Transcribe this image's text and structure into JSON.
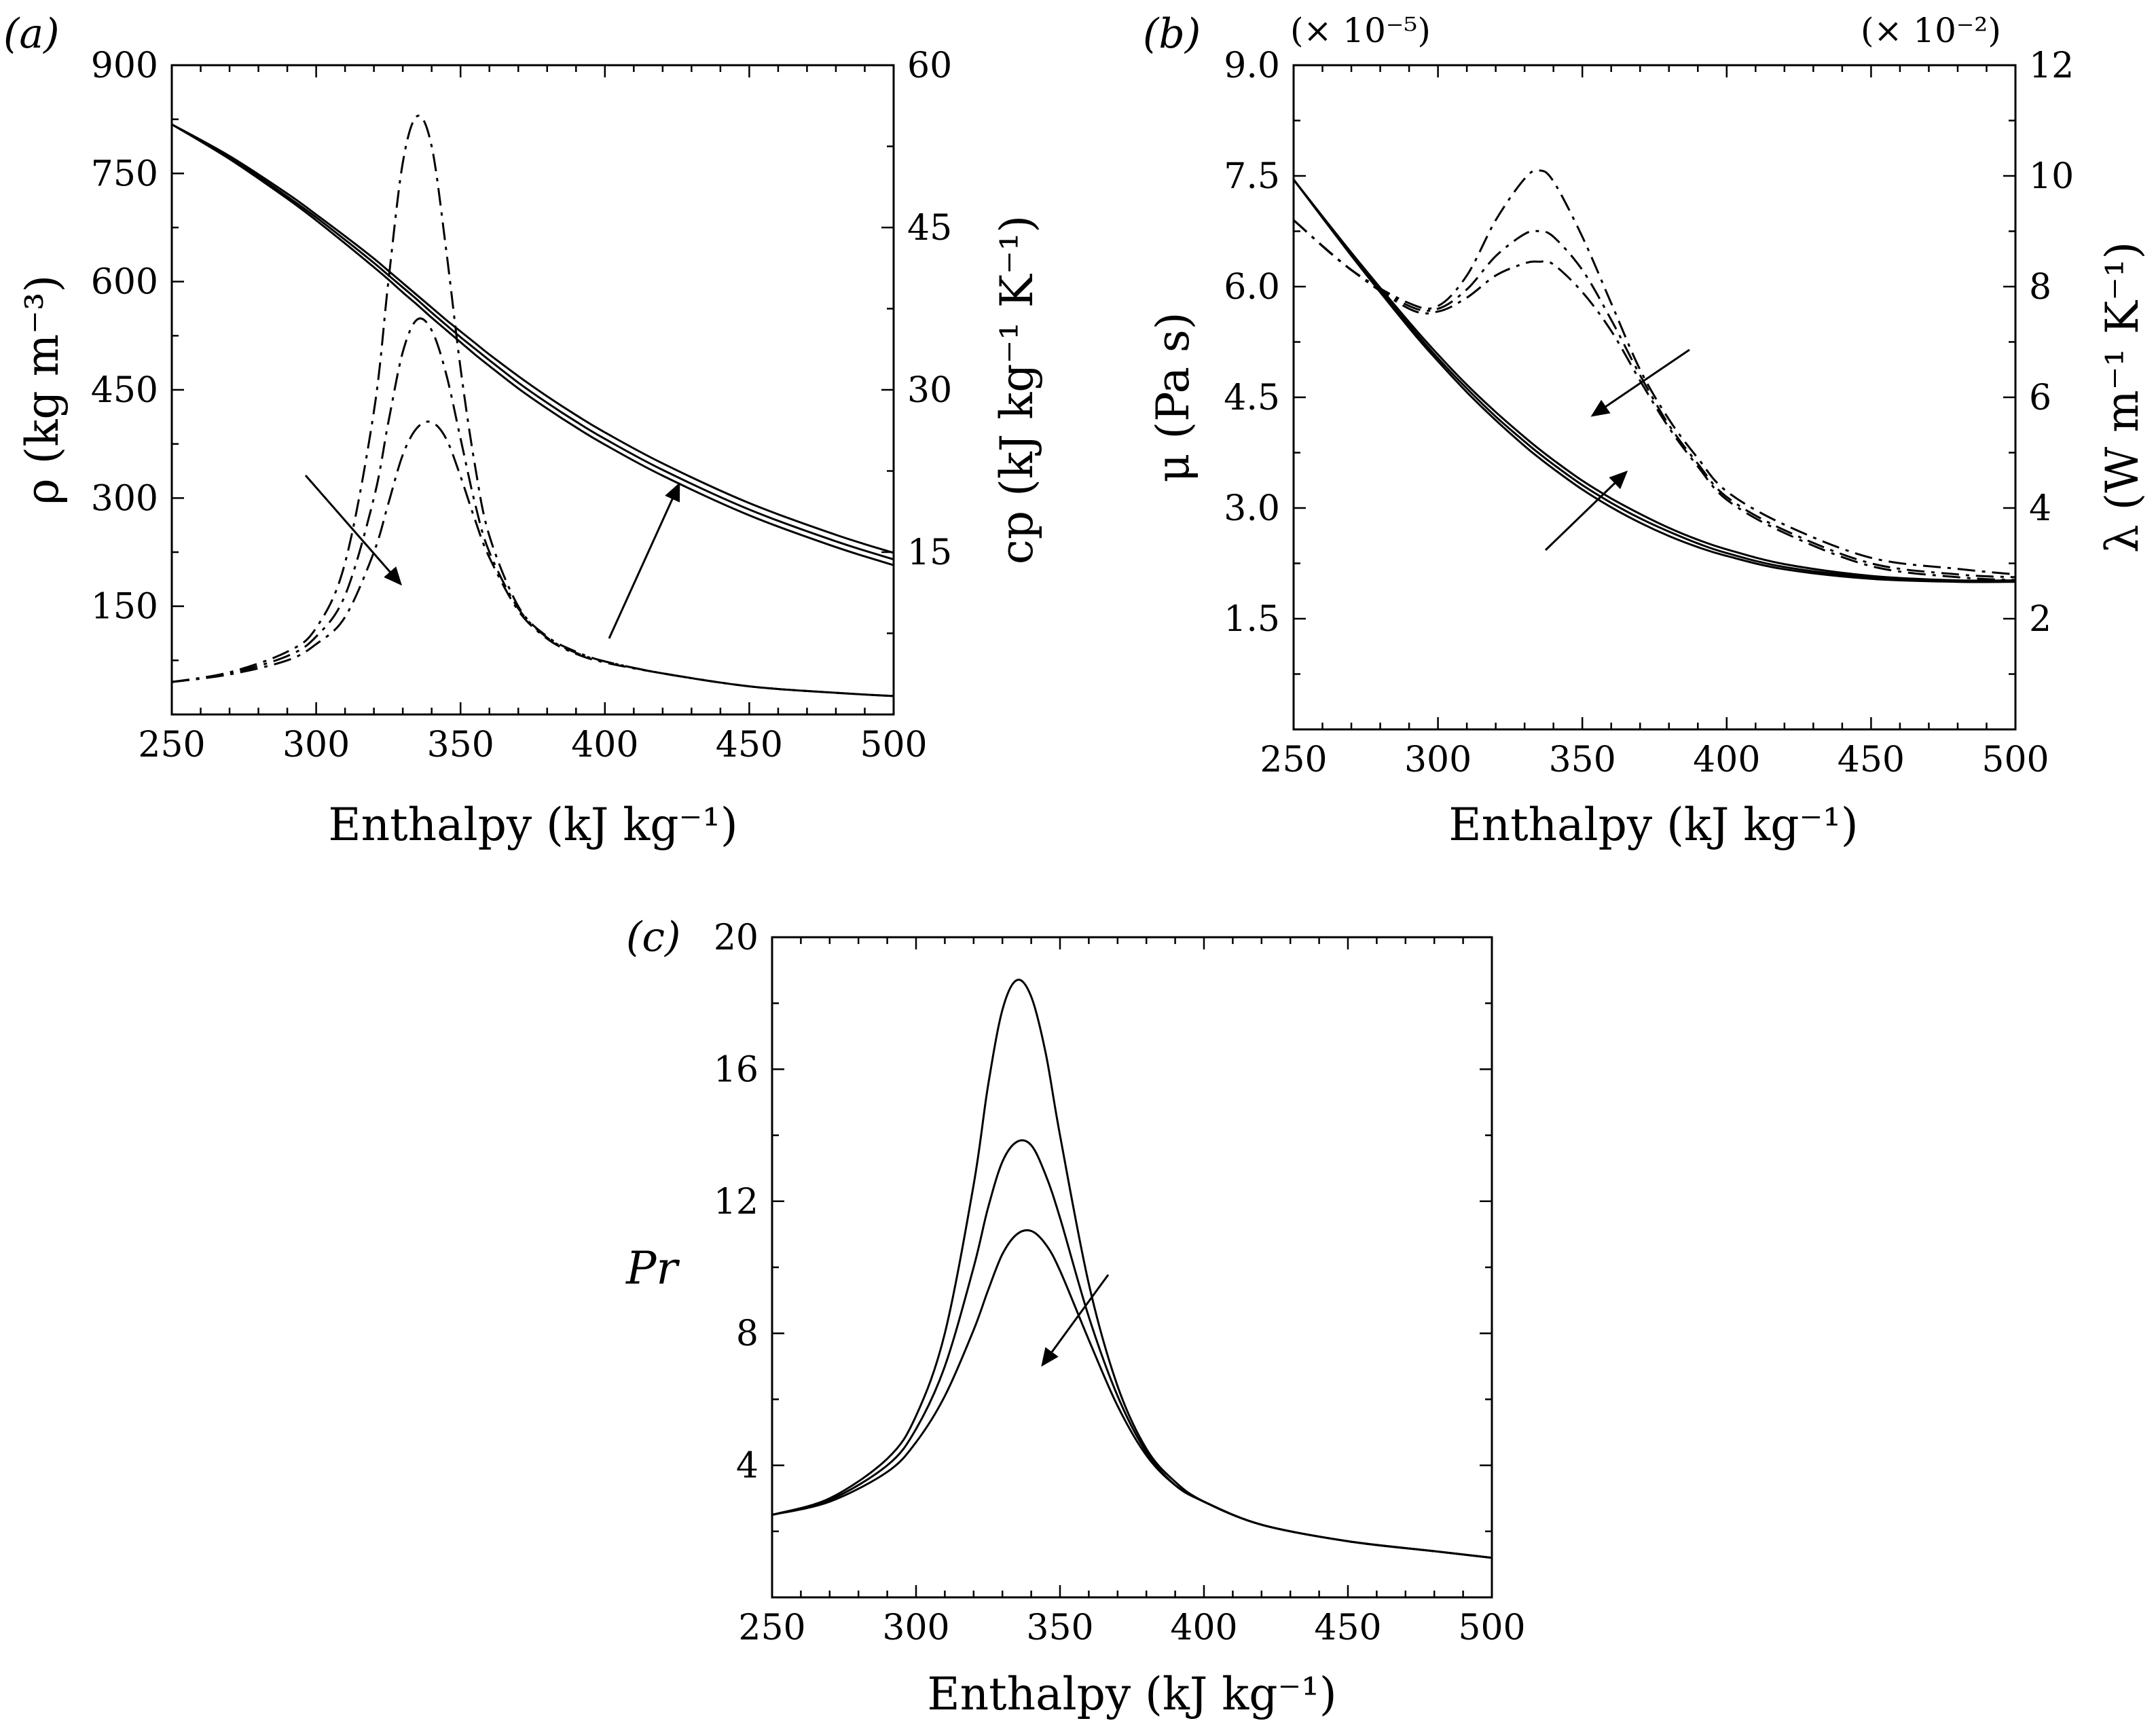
{
  "chart_data": [
    {
      "id": "a",
      "type": "line",
      "panel_label": "(a)",
      "xlabel": "Enthalpy (kJ kg⁻¹)",
      "xlim": [
        250,
        500
      ],
      "xticks": [
        250,
        300,
        350,
        400,
        450,
        500
      ],
      "ylabel_left": "ρ (kg m⁻³)",
      "ylim_left": [
        0,
        900
      ],
      "yticks_left": [
        150,
        300,
        450,
        600,
        750,
        900
      ],
      "ylabel_right": "cp (kJ kg⁻¹ K⁻¹)",
      "ylim_right": [
        0,
        60
      ],
      "yticks_right": [
        15,
        30,
        45,
        60
      ],
      "x": [
        250,
        270,
        290,
        300,
        310,
        320,
        325,
        330,
        335,
        340,
        345,
        350,
        355,
        360,
        370,
        380,
        390,
        400,
        420,
        450,
        480,
        500
      ],
      "series": [
        {
          "name": "ρ (1)",
          "axis": "left",
          "style": "solid",
          "values": [
            818,
            770,
            715,
            685,
            653,
            620,
            603,
            585,
            568,
            550,
            533,
            516,
            499,
            483,
            452,
            424,
            398,
            374,
            331,
            276,
            232,
            207
          ]
        },
        {
          "name": "ρ (2)",
          "axis": "left",
          "style": "solid",
          "values": [
            818,
            772,
            718,
            689,
            658,
            626,
            609,
            592,
            575,
            557,
            540,
            523,
            507,
            491,
            460,
            432,
            406,
            382,
            339,
            284,
            240,
            215
          ]
        },
        {
          "name": "ρ (3)",
          "axis": "left",
          "style": "solid",
          "values": [
            818,
            774,
            722,
            693,
            663,
            632,
            615,
            598,
            581,
            564,
            547,
            531,
            515,
            499,
            469,
            441,
            415,
            391,
            348,
            293,
            249,
            224
          ]
        },
        {
          "name": "cp (1)",
          "axis": "right",
          "style": "dashdot",
          "values": [
            3.0,
            3.9,
            5.8,
            8.0,
            14.0,
            28.0,
            40.0,
            51.0,
            55.3,
            52.5,
            43.0,
            32.0,
            23.0,
            16.5,
            10.0,
            7.2,
            5.8,
            4.9,
            3.8,
            2.6,
            2.0,
            1.7
          ]
        },
        {
          "name": "cp (2)",
          "axis": "right",
          "style": "dashdot",
          "values": [
            3.0,
            3.8,
            5.4,
            7.2,
            11.0,
            20.0,
            27.0,
            33.5,
            36.5,
            35.5,
            31.5,
            25.5,
            19.5,
            15.0,
            9.8,
            7.1,
            5.7,
            4.9,
            3.8,
            2.6,
            2.0,
            1.7
          ]
        },
        {
          "name": "cp (3)",
          "axis": "right",
          "style": "dashdot",
          "values": [
            3.0,
            3.7,
            5.0,
            6.5,
            9.0,
            15.0,
            19.5,
            24.0,
            26.5,
            27.0,
            25.5,
            22.0,
            18.0,
            14.5,
            9.6,
            7.0,
            5.6,
            4.8,
            3.8,
            2.6,
            2.0,
            1.7
          ]
        }
      ],
      "annotations": [
        {
          "type": "arrow",
          "direction": "down-right",
          "note": "cp peak decreases"
        },
        {
          "type": "arrow",
          "direction": "up-right",
          "note": "ρ increases"
        }
      ]
    },
    {
      "id": "b",
      "type": "line",
      "panel_label": "(b)",
      "xlabel": "Enthalpy (kJ kg⁻¹)",
      "xlim": [
        250,
        500
      ],
      "xticks": [
        250,
        300,
        350,
        400,
        450,
        500
      ],
      "ylabel_left": "μ (Pa s)",
      "ylim_left": [
        0,
        9.0
      ],
      "yticks_left": [
        1.5,
        3.0,
        4.5,
        6.0,
        7.5,
        9.0
      ],
      "left_multiplier": "(× 10⁻⁵)",
      "ylabel_right": "λ (W m⁻¹ K⁻¹)",
      "ylim_right": [
        0,
        12
      ],
      "yticks_right": [
        2,
        4,
        6,
        8,
        10,
        12
      ],
      "right_multiplier": "(× 10⁻²)",
      "x": [
        250,
        270,
        290,
        300,
        310,
        320,
        330,
        335,
        340,
        350,
        360,
        370,
        380,
        390,
        400,
        420,
        450,
        480,
        500
      ],
      "series": [
        {
          "name": "μ (1)",
          "axis": "left",
          "style": "solid",
          "values": [
            7.45,
            6.42,
            5.44,
            4.99,
            4.57,
            4.19,
            3.84,
            3.68,
            3.53,
            3.25,
            3.01,
            2.8,
            2.62,
            2.47,
            2.35,
            2.17,
            2.04,
            2.0,
            2.0
          ]
        },
        {
          "name": "μ (2)",
          "axis": "left",
          "style": "solid",
          "values": [
            7.45,
            6.44,
            5.48,
            5.03,
            4.62,
            4.24,
            3.9,
            3.74,
            3.59,
            3.31,
            3.07,
            2.86,
            2.68,
            2.52,
            2.39,
            2.2,
            2.06,
            2.01,
            2.01
          ]
        },
        {
          "name": "μ (3)",
          "axis": "left",
          "style": "solid",
          "values": [
            7.45,
            6.46,
            5.52,
            5.08,
            4.67,
            4.3,
            3.96,
            3.8,
            3.65,
            3.37,
            3.13,
            2.92,
            2.73,
            2.57,
            2.44,
            2.24,
            2.08,
            2.02,
            2.02
          ]
        },
        {
          "name": "λ (1)",
          "axis": "right",
          "style": "dashdot",
          "values": [
            9.2,
            8.3,
            7.7,
            7.65,
            8.2,
            9.2,
            9.95,
            10.1,
            9.9,
            8.9,
            7.7,
            6.5,
            5.6,
            4.9,
            4.3,
            3.7,
            3.1,
            2.9,
            2.8
          ]
        },
        {
          "name": "λ (2)",
          "axis": "right",
          "style": "dashdot",
          "values": [
            9.2,
            8.3,
            7.65,
            7.6,
            7.95,
            8.55,
            8.95,
            9.0,
            8.9,
            8.3,
            7.4,
            6.4,
            5.5,
            4.8,
            4.2,
            3.6,
            3.0,
            2.8,
            2.75
          ]
        },
        {
          "name": "λ (3)",
          "axis": "right",
          "style": "dashdot",
          "values": [
            9.2,
            8.3,
            7.6,
            7.55,
            7.8,
            8.2,
            8.42,
            8.45,
            8.4,
            7.9,
            7.2,
            6.3,
            5.45,
            4.75,
            4.15,
            3.55,
            2.95,
            2.75,
            2.7
          ]
        }
      ],
      "annotations": [
        {
          "type": "arrow",
          "direction": "down-left",
          "note": "λ peak decreases"
        },
        {
          "type": "arrow",
          "direction": "up-right",
          "note": "μ increases"
        }
      ]
    },
    {
      "id": "c",
      "type": "line",
      "panel_label": "(c)",
      "xlabel": "Enthalpy (kJ kg⁻¹)",
      "xlim": [
        250,
        500
      ],
      "xticks": [
        250,
        300,
        350,
        400,
        450,
        500
      ],
      "ylabel_left": "Pr",
      "ylim_left": [
        0,
        20
      ],
      "yticks_left": [
        4,
        8,
        12,
        16,
        20
      ],
      "x": [
        250,
        270,
        290,
        300,
        310,
        320,
        325,
        330,
        335,
        340,
        345,
        350,
        360,
        370,
        380,
        390,
        400,
        420,
        450,
        480,
        500
      ],
      "series": [
        {
          "name": "Pr (1)",
          "axis": "left",
          "style": "solid",
          "values": [
            2.5,
            3.0,
            4.2,
            5.5,
            8.0,
            12.5,
            15.5,
            17.8,
            18.7,
            18.2,
            16.5,
            14.0,
            9.5,
            6.4,
            4.5,
            3.5,
            2.9,
            2.2,
            1.7,
            1.4,
            1.2
          ]
        },
        {
          "name": "Pr (2)",
          "axis": "left",
          "style": "solid",
          "values": [
            2.5,
            2.95,
            4.0,
            5.1,
            7.0,
            10.0,
            11.8,
            13.2,
            13.8,
            13.7,
            12.8,
            11.5,
            8.5,
            6.1,
            4.4,
            3.4,
            2.9,
            2.2,
            1.7,
            1.4,
            1.2
          ]
        },
        {
          "name": "Pr (3)",
          "axis": "left",
          "style": "solid",
          "values": [
            2.5,
            2.9,
            3.8,
            4.7,
            6.1,
            8.1,
            9.3,
            10.4,
            11.0,
            11.1,
            10.7,
            9.9,
            7.8,
            5.8,
            4.3,
            3.4,
            2.9,
            2.2,
            1.7,
            1.4,
            1.2
          ]
        }
      ],
      "annotations": [
        {
          "type": "arrow",
          "direction": "down-left",
          "note": "Pr peak decreases"
        }
      ]
    }
  ]
}
